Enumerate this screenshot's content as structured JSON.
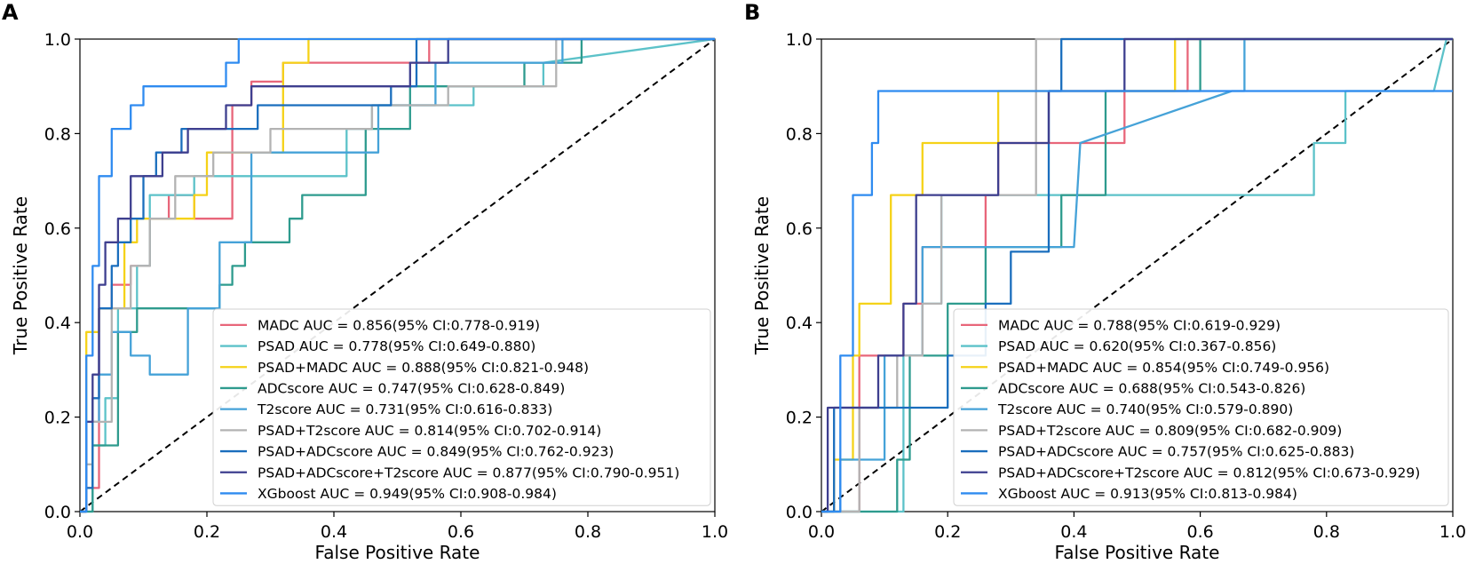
{
  "colors": {
    "MADC": "#e8667a",
    "PSAD": "#5cc2c9",
    "PSAD+MADC": "#f5d218",
    "ADCscore": "#2e9b8e",
    "T2score": "#45a2d8",
    "PSAD+T2score": "#b3b3b3",
    "PSAD+ADCscore": "#1a6ebd",
    "PSAD+ADCscore+T2score": "#3e3f8f",
    "XGboost": "#2f8bf0"
  },
  "chart_data": [
    {
      "type": "line",
      "panel": "A",
      "xlabel": "False Positive Rate",
      "ylabel": "True Positive Rate",
      "xlim": [
        0,
        1
      ],
      "ylim": [
        0,
        1
      ],
      "xticks": [
        "0.0",
        "0.2",
        "0.4",
        "0.6",
        "0.8",
        "1.0"
      ],
      "yticks": [
        "0.0",
        "0.2",
        "0.4",
        "0.6",
        "0.8",
        "1.0"
      ],
      "legend_position": "lower-right",
      "series": [
        {
          "name": "MADC",
          "legend": "MADC  AUC = 0.856(95% CI:0.778-0.919)",
          "x": [
            0,
            0.01,
            0.01,
            0.03,
            0.03,
            0.05,
            0.05,
            0.08,
            0.08,
            0.11,
            0.11,
            0.14,
            0.14,
            0.18,
            0.18,
            0.24,
            0.24,
            0.27,
            0.27,
            0.32,
            0.32,
            0.55,
            0.55,
            1
          ],
          "y": [
            0,
            0,
            0.05,
            0.05,
            0.43,
            0.43,
            0.48,
            0.48,
            0.52,
            0.52,
            0.62,
            0.62,
            0.67,
            0.67,
            0.62,
            0.62,
            0.86,
            0.86,
            0.91,
            0.91,
            0.95,
            0.95,
            1,
            1
          ]
        },
        {
          "name": "PSAD",
          "legend": "PSAD  AUC = 0.778(95% CI:0.649-0.880)",
          "x": [
            0,
            0.02,
            0.02,
            0.04,
            0.04,
            0.06,
            0.06,
            0.09,
            0.09,
            0.11,
            0.11,
            0.18,
            0.18,
            0.42,
            0.42,
            0.46,
            0.46,
            0.62,
            0.62,
            0.73,
            0.73,
            1
          ],
          "y": [
            0,
            0,
            0.14,
            0.14,
            0.24,
            0.24,
            0.43,
            0.43,
            0.52,
            0.52,
            0.67,
            0.67,
            0.71,
            0.71,
            0.81,
            0.81,
            0.86,
            0.86,
            0.9,
            0.9,
            0.95,
            1
          ]
        },
        {
          "name": "PSAD+MADC",
          "legend": "PSAD+MADC  AUC = 0.888(95% CI:0.821-0.948)",
          "x": [
            0,
            0.01,
            0.01,
            0.03,
            0.03,
            0.07,
            0.07,
            0.09,
            0.09,
            0.18,
            0.18,
            0.2,
            0.2,
            0.32,
            0.32,
            0.36,
            0.36,
            1
          ],
          "y": [
            0,
            0,
            0.38,
            0.38,
            0.43,
            0.43,
            0.57,
            0.57,
            0.62,
            0.62,
            0.67,
            0.67,
            0.76,
            0.76,
            0.95,
            0.95,
            1,
            1
          ]
        },
        {
          "name": "ADCscore",
          "legend": "ADCscore  AUC = 0.747(95% CI:0.628-0.849)",
          "x": [
            0,
            0.02,
            0.02,
            0.06,
            0.06,
            0.09,
            0.09,
            0.22,
            0.22,
            0.24,
            0.24,
            0.26,
            0.26,
            0.33,
            0.33,
            0.35,
            0.35,
            0.36,
            0.36,
            0.45,
            0.45,
            0.52,
            0.52,
            0.65,
            0.65,
            0.7,
            0.7,
            0.79,
            0.79,
            1
          ],
          "y": [
            0,
            0,
            0.14,
            0.14,
            0.38,
            0.38,
            0.43,
            0.43,
            0.48,
            0.48,
            0.52,
            0.52,
            0.57,
            0.57,
            0.62,
            0.62,
            0.67,
            0.67,
            0.67,
            0.67,
            0.81,
            0.81,
            0.9,
            0.9,
            0.9,
            0.9,
            0.95,
            0.95,
            1,
            1
          ]
        },
        {
          "name": "T2score",
          "legend": "T2score  AUC = 0.731(95% CI:0.616-0.833)",
          "x": [
            0,
            0.01,
            0.01,
            0.03,
            0.03,
            0.05,
            0.05,
            0.08,
            0.08,
            0.11,
            0.11,
            0.17,
            0.17,
            0.22,
            0.22,
            0.27,
            0.27,
            0.47,
            0.47,
            0.56,
            0.56,
            0.76,
            0.76,
            1
          ],
          "y": [
            0,
            0,
            0.19,
            0.19,
            0.29,
            0.29,
            0.38,
            0.38,
            0.33,
            0.33,
            0.29,
            0.29,
            0.43,
            0.43,
            0.57,
            0.57,
            0.76,
            0.76,
            0.86,
            0.86,
            0.95,
            0.95,
            1,
            1
          ]
        },
        {
          "name": "PSAD+T2score",
          "legend": "PSAD+T2score  AUC = 0.814(95% CI:0.702-0.914)",
          "x": [
            0,
            0.01,
            0.01,
            0.02,
            0.02,
            0.05,
            0.05,
            0.08,
            0.08,
            0.11,
            0.11,
            0.15,
            0.15,
            0.21,
            0.21,
            0.3,
            0.3,
            0.46,
            0.46,
            0.58,
            0.58,
            0.75,
            0.75,
            1
          ],
          "y": [
            0,
            0,
            0.1,
            0.1,
            0.19,
            0.19,
            0.43,
            0.43,
            0.52,
            0.52,
            0.62,
            0.62,
            0.71,
            0.71,
            0.76,
            0.76,
            0.81,
            0.81,
            0.86,
            0.86,
            0.9,
            0.9,
            1,
            1
          ]
        },
        {
          "name": "PSAD+ADCscore",
          "legend": "PSAD+ADCscore  AUC = 0.849(95% CI:0.762-0.923)",
          "x": [
            0,
            0.01,
            0.01,
            0.02,
            0.02,
            0.03,
            0.03,
            0.05,
            0.05,
            0.06,
            0.06,
            0.08,
            0.08,
            0.1,
            0.1,
            0.12,
            0.12,
            0.16,
            0.16,
            0.28,
            0.28,
            0.49,
            0.49,
            0.53,
            0.53,
            1
          ],
          "y": [
            0,
            0,
            0.05,
            0.05,
            0.24,
            0.24,
            0.43,
            0.43,
            0.52,
            0.52,
            0.57,
            0.57,
            0.62,
            0.62,
            0.71,
            0.71,
            0.76,
            0.76,
            0.81,
            0.81,
            0.86,
            0.86,
            0.9,
            0.9,
            1,
            1
          ]
        },
        {
          "name": "PSAD+ADCscore+T2score",
          "legend": "PSAD+ADCscore+T2score  AUC = 0.877(95% CI:0.790-0.951)",
          "x": [
            0,
            0.01,
            0.01,
            0.02,
            0.02,
            0.03,
            0.03,
            0.04,
            0.04,
            0.06,
            0.06,
            0.08,
            0.08,
            0.13,
            0.13,
            0.17,
            0.17,
            0.23,
            0.23,
            0.27,
            0.27,
            0.52,
            0.52,
            0.58,
            0.58,
            1
          ],
          "y": [
            0,
            0,
            0.19,
            0.19,
            0.29,
            0.29,
            0.48,
            0.48,
            0.57,
            0.57,
            0.62,
            0.62,
            0.71,
            0.71,
            0.76,
            0.76,
            0.81,
            0.81,
            0.86,
            0.86,
            0.9,
            0.9,
            0.95,
            0.95,
            1,
            1
          ]
        },
        {
          "name": "XGboost",
          "legend": "XGboost  AUC = 0.949(95% CI:0.908-0.984)",
          "x": [
            0,
            0.01,
            0.01,
            0.02,
            0.02,
            0.03,
            0.03,
            0.05,
            0.05,
            0.08,
            0.08,
            0.1,
            0.1,
            0.12,
            0.12,
            0.18,
            0.18,
            0.23,
            0.23,
            0.25,
            0.25,
            0.27,
            0.27,
            1
          ],
          "y": [
            0,
            0,
            0.33,
            0.33,
            0.52,
            0.52,
            0.71,
            0.71,
            0.81,
            0.81,
            0.86,
            0.86,
            0.9,
            0.9,
            0.9,
            0.9,
            0.9,
            0.9,
            0.95,
            0.95,
            1,
            1,
            1,
            1
          ]
        }
      ]
    },
    {
      "type": "line",
      "panel": "B",
      "xlabel": "False Positive Rate",
      "ylabel": "True Positive Rate",
      "xlim": [
        0,
        1
      ],
      "ylim": [
        0,
        1
      ],
      "xticks": [
        "0.0",
        "0.2",
        "0.4",
        "0.6",
        "0.8",
        "1.0"
      ],
      "yticks": [
        "0.0",
        "0.2",
        "0.4",
        "0.6",
        "0.8",
        "1.0"
      ],
      "legend_position": "lower-right",
      "series": [
        {
          "name": "MADC",
          "legend": "MADC  AUC = 0.788(95% CI:0.619-0.929)",
          "x": [
            0,
            0.06,
            0.06,
            0.13,
            0.13,
            0.16,
            0.16,
            0.26,
            0.26,
            0.28,
            0.28,
            0.48,
            0.48,
            0.51,
            0.51,
            0.58,
            0.58,
            1
          ],
          "y": [
            0,
            0,
            0.33,
            0.33,
            0.44,
            0.44,
            0.56,
            0.56,
            0.67,
            0.67,
            0.78,
            0.78,
            0.89,
            0.89,
            0.89,
            0.89,
            1,
            1
          ]
        },
        {
          "name": "PSAD",
          "legend": "PSAD  AUC = 0.620(95% CI:0.367-0.856)",
          "x": [
            0,
            0.13,
            0.13,
            0.16,
            0.16,
            0.19,
            0.19,
            0.78,
            0.78,
            0.83,
            0.83,
            0.97,
            0.97,
            0.99,
            0.99,
            1
          ],
          "y": [
            0,
            0,
            0.33,
            0.33,
            0.44,
            0.44,
            0.67,
            0.67,
            0.78,
            0.78,
            0.89,
            0.89,
            0.89,
            1,
            1,
            1
          ]
        },
        {
          "name": "PSAD+MADC",
          "legend": "PSAD+MADC  AUC = 0.854(95% CI:0.749-0.956)",
          "x": [
            0,
            0.02,
            0.02,
            0.05,
            0.05,
            0.06,
            0.06,
            0.11,
            0.11,
            0.16,
            0.16,
            0.28,
            0.28,
            0.56,
            0.56,
            1
          ],
          "y": [
            0,
            0,
            0.11,
            0.11,
            0.33,
            0.33,
            0.44,
            0.44,
            0.67,
            0.67,
            0.78,
            0.78,
            0.89,
            0.89,
            1,
            1
          ]
        },
        {
          "name": "ADCscore",
          "legend": "ADCscore  AUC = 0.688(95% CI:0.543-0.826)",
          "x": [
            0,
            0.12,
            0.12,
            0.14,
            0.14,
            0.2,
            0.2,
            0.26,
            0.26,
            0.38,
            0.38,
            0.45,
            0.45,
            0.58,
            0.58,
            0.6,
            0.6,
            1
          ],
          "y": [
            0,
            0,
            0.11,
            0.11,
            0.33,
            0.33,
            0.44,
            0.44,
            0.56,
            0.56,
            0.67,
            0.67,
            0.89,
            0.89,
            0.89,
            0.89,
            1,
            1
          ]
        },
        {
          "name": "T2score",
          "legend": "T2score  AUC = 0.740(95% CI:0.579-0.890)",
          "x": [
            0,
            0.03,
            0.03,
            0.1,
            0.1,
            0.16,
            0.16,
            0.4,
            0.4,
            0.41,
            0.41,
            0.65,
            0.65,
            0.67,
            0.67,
            1
          ],
          "y": [
            0,
            0,
            0.11,
            0.11,
            0.33,
            0.33,
            0.56,
            0.56,
            0.56,
            0.78,
            0.78,
            0.89,
            0.89,
            0.89,
            1,
            1
          ]
        },
        {
          "name": "PSAD+T2score",
          "legend": "PSAD+T2score  AUC = 0.809(95% CI:0.682-0.909)",
          "x": [
            0,
            0.06,
            0.06,
            0.12,
            0.12,
            0.16,
            0.16,
            0.19,
            0.19,
            0.34,
            0.34,
            0.35,
            0.35,
            1
          ],
          "y": [
            0,
            0,
            0.22,
            0.22,
            0.33,
            0.33,
            0.44,
            0.44,
            0.67,
            0.67,
            1,
            1,
            1,
            1
          ]
        },
        {
          "name": "PSAD+ADCscore",
          "legend": "PSAD+ADCscore  AUC = 0.757(95% CI:0.625-0.883)",
          "x": [
            0,
            0.02,
            0.02,
            0.2,
            0.2,
            0.26,
            0.26,
            0.3,
            0.3,
            0.36,
            0.36,
            0.38,
            0.38,
            0.42,
            0.42,
            1
          ],
          "y": [
            0,
            0,
            0.22,
            0.22,
            0.33,
            0.33,
            0.44,
            0.44,
            0.55,
            0.55,
            0.89,
            0.89,
            1,
            1,
            1,
            1
          ]
        },
        {
          "name": "PSAD+ADCscore+T2score",
          "legend": "PSAD+ADCscore+T2score  AUC = 0.812(95% CI:0.673-0.929)",
          "x": [
            0,
            0.01,
            0.01,
            0.09,
            0.09,
            0.13,
            0.13,
            0.15,
            0.15,
            0.28,
            0.28,
            0.36,
            0.36,
            0.48,
            0.48,
            1
          ],
          "y": [
            0,
            0,
            0.22,
            0.22,
            0.33,
            0.33,
            0.44,
            0.44,
            0.67,
            0.67,
            0.78,
            0.78,
            0.89,
            0.89,
            1,
            1
          ]
        },
        {
          "name": "XGboost",
          "legend": "XGboost  AUC = 0.913(95% CI:0.813-0.984)",
          "x": [
            0,
            0.03,
            0.03,
            0.05,
            0.05,
            0.08,
            0.08,
            0.09,
            0.09,
            1
          ],
          "y": [
            0,
            0,
            0.33,
            0.33,
            0.67,
            0.67,
            0.78,
            0.78,
            0.89,
            0.89
          ]
        }
      ]
    }
  ]
}
